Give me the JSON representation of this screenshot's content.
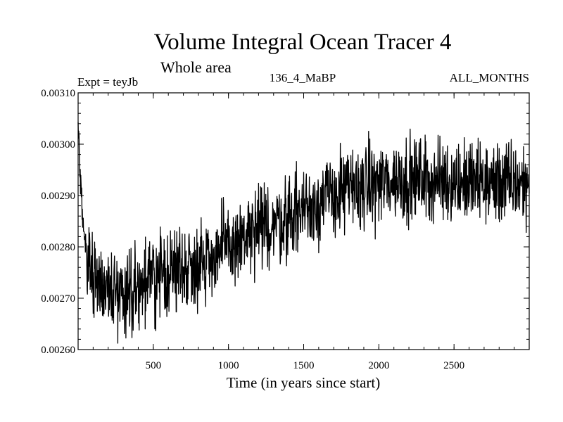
{
  "chart_data": {
    "type": "line",
    "title": "Volume Integral Ocean Tracer 4",
    "subtitle": "Whole area",
    "header_left": "Expt = teyJb",
    "header_center": "136_4_MaBP",
    "header_right": "ALL_MONTHS",
    "xlabel": "Time (in years since start)",
    "ylabel": "",
    "xlim": [
      0,
      3000
    ],
    "ylim": [
      0.0026,
      0.0031
    ],
    "xticks": [
      500,
      1000,
      1500,
      2000,
      2500
    ],
    "xtick_labels": [
      "500",
      "1000",
      "1500",
      "2000",
      "2500"
    ],
    "yticks": [
      0.0026,
      0.0027,
      0.0028,
      0.0029,
      0.003,
      0.0031
    ],
    "ytick_labels": [
      "0.00260",
      "0.00270",
      "0.00280",
      "0.00290",
      "0.00300",
      "0.00310"
    ],
    "series": [
      {
        "name": "Volume Integral Ocean Tracer 4",
        "color": "#000000",
        "trend_x": [
          0,
          10,
          30,
          60,
          100,
          150,
          200,
          250,
          300,
          400,
          500,
          600,
          700,
          800,
          900,
          1000,
          1100,
          1200,
          1300,
          1400,
          1500,
          1600,
          1700,
          1800,
          1900,
          2000,
          2100,
          2200,
          2300,
          2400,
          2500,
          2600,
          2700,
          2800,
          2900,
          3000
        ],
        "trend_y": [
          0.00303,
          0.00296,
          0.00285,
          0.00278,
          0.00275,
          0.00273,
          0.00272,
          0.00271,
          0.002712,
          0.002725,
          0.002738,
          0.00275,
          0.00276,
          0.00277,
          0.002785,
          0.0028,
          0.002815,
          0.00283,
          0.002845,
          0.00286,
          0.002875,
          0.00289,
          0.0029,
          0.00291,
          0.002918,
          0.002925,
          0.00293,
          0.002932,
          0.002932,
          0.00293,
          0.002928,
          0.002926,
          0.002925,
          0.002924,
          0.002923,
          0.002922
        ],
        "noise_amplitude": 7e-05
      }
    ]
  }
}
